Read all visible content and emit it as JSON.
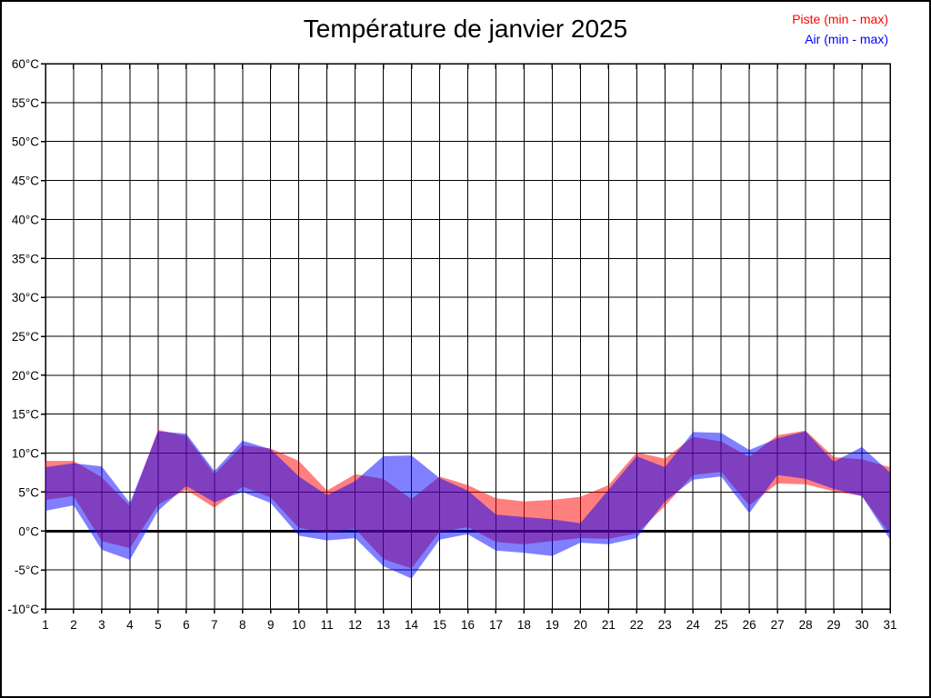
{
  "title": "Température de janvier 2025",
  "legend": [
    {
      "label": "Piste (min - max)",
      "color": "#ff0000"
    },
    {
      "label": "Air (min - max)",
      "color": "#0000ff"
    }
  ],
  "chart_data": {
    "type": "area",
    "title": "Température de janvier 2025",
    "xlabel": "",
    "ylabel": "",
    "x": [
      1,
      2,
      3,
      4,
      5,
      6,
      7,
      8,
      9,
      10,
      11,
      12,
      13,
      14,
      15,
      16,
      17,
      18,
      19,
      20,
      21,
      22,
      23,
      24,
      25,
      26,
      27,
      28,
      29,
      30,
      31
    ],
    "ylim": [
      -10,
      60
    ],
    "y_tick_step": 5,
    "grid": true,
    "zero_line_bold": true,
    "legend_position": "top-right",
    "background": "#ffffff",
    "grid_color": "#000000",
    "series": [
      {
        "name": "Piste (min - max)",
        "color": "#ff0000",
        "opacity": 0.5,
        "min": [
          4.0,
          4.5,
          -1.3,
          -2.2,
          3.4,
          5.3,
          3.0,
          5.7,
          4.3,
          0.4,
          -0.2,
          0.3,
          -3.6,
          -4.8,
          -0.1,
          0.5,
          -1.4,
          -1.7,
          -1.3,
          -0.9,
          -1.0,
          -0.3,
          3.2,
          7.2,
          7.6,
          3.3,
          6.1,
          6.0,
          5.1,
          4.5,
          -0.4
        ],
        "max": [
          9.0,
          9.0,
          6.9,
          3.2,
          13.0,
          12.2,
          7.3,
          11.0,
          10.6,
          9.0,
          5.2,
          7.3,
          6.7,
          4.1,
          7.0,
          5.9,
          4.2,
          3.8,
          4.0,
          4.4,
          5.9,
          10.1,
          9.3,
          12.1,
          11.5,
          9.5,
          12.3,
          12.9,
          9.5,
          9.2,
          8.2
        ]
      },
      {
        "name": "Air (min - max)",
        "color": "#0000ff",
        "opacity": 0.5,
        "min": [
          2.6,
          3.3,
          -2.4,
          -3.7,
          2.6,
          5.8,
          3.7,
          5.0,
          3.6,
          -0.6,
          -1.2,
          -0.9,
          -4.5,
          -6.1,
          -1.1,
          -0.4,
          -2.5,
          -2.8,
          -3.2,
          -1.5,
          -1.7,
          -0.9,
          3.8,
          6.6,
          7.0,
          2.3,
          7.2,
          6.7,
          5.4,
          4.5,
          -1.1
        ],
        "max": [
          8.2,
          8.7,
          8.3,
          3.6,
          12.8,
          12.5,
          7.7,
          11.6,
          10.5,
          7.0,
          4.6,
          6.4,
          9.6,
          9.7,
          6.8,
          5.2,
          2.1,
          1.8,
          1.5,
          1.0,
          5.3,
          9.6,
          8.2,
          12.7,
          12.6,
          10.4,
          11.9,
          12.8,
          8.9,
          10.8,
          7.5
        ]
      }
    ],
    "y_ticks": [
      {
        "v": 60,
        "label": "60°C"
      },
      {
        "v": 55,
        "label": "55°C"
      },
      {
        "v": 50,
        "label": "50°C"
      },
      {
        "v": 45,
        "label": "45°C"
      },
      {
        "v": 40,
        "label": "40°C"
      },
      {
        "v": 35,
        "label": "35°C"
      },
      {
        "v": 30,
        "label": "30°C"
      },
      {
        "v": 25,
        "label": "25°C"
      },
      {
        "v": 20,
        "label": "20°C"
      },
      {
        "v": 15,
        "label": "15°C"
      },
      {
        "v": 10,
        "label": "10°C"
      },
      {
        "v": 5,
        "label": "5°C"
      },
      {
        "v": 0,
        "label": "0°C"
      },
      {
        "v": -5,
        "label": "-5°C"
      },
      {
        "v": -10,
        "label": "-10°C"
      }
    ]
  }
}
